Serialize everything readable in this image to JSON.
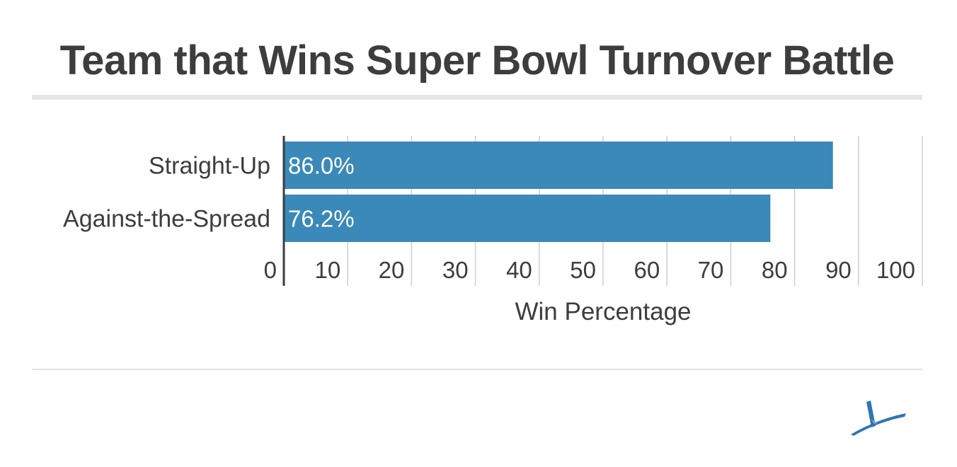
{
  "chart_data": {
    "type": "bar",
    "orientation": "horizontal",
    "title": "Team that Wins Super Bowl Turnover Battle",
    "xlabel": "Win Percentage",
    "ylabel": "",
    "categories": [
      "Straight-Up",
      "Against-the-Spread"
    ],
    "values": [
      86.0,
      76.2
    ],
    "value_labels": [
      "86.0%",
      "76.2%"
    ],
    "xlim": [
      0,
      100
    ],
    "xticks": [
      "0",
      "10",
      "20",
      "30",
      "40",
      "50",
      "60",
      "70",
      "80",
      "90",
      "100"
    ],
    "grid": true,
    "legend": "none",
    "colors": {
      "bar": "#3a89b8",
      "value_label": "#ffffff",
      "text": "#3d3d3d",
      "grid": "#cfcfcf",
      "axis": "#3d3d3d"
    }
  },
  "logo": {
    "icon": "stylized-a-logo-icon",
    "color": "#2f74b5"
  }
}
